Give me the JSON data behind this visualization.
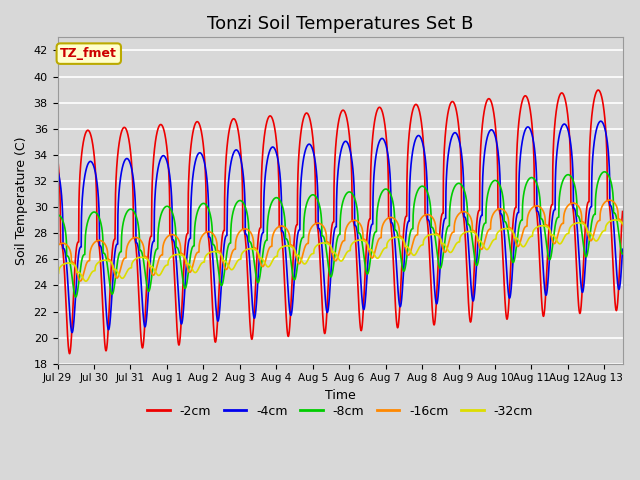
{
  "title": "Tonzi Soil Temperatures Set B",
  "xlabel": "Time",
  "ylabel": "Soil Temperature (C)",
  "ylim": [
    18,
    43
  ],
  "yticks": [
    18,
    20,
    22,
    24,
    26,
    28,
    30,
    32,
    34,
    36,
    38,
    40,
    42
  ],
  "bg_color": "#d8d8d8",
  "plot_bg_color": "#d8d8d8",
  "grid_color": "white",
  "legend_label": "TZ_fmet",
  "legend_box_color": "#ffffcc",
  "legend_box_edge": "#bbaa00",
  "legend_text_color": "#cc0000",
  "series": [
    {
      "label": "-2cm",
      "color": "#ee0000",
      "lw": 1.2
    },
    {
      "label": "-4cm",
      "color": "#0000ee",
      "lw": 1.2
    },
    {
      "label": "-8cm",
      "color": "#00cc00",
      "lw": 1.2
    },
    {
      "label": "-16cm",
      "color": "#ff8800",
      "lw": 1.2
    },
    {
      "label": "-32cm",
      "color": "#dddd00",
      "lw": 1.2
    }
  ],
  "num_days": 15.5,
  "samples_per_day": 288,
  "xtick_days": [
    0,
    1,
    2,
    3,
    4,
    5,
    6,
    7,
    8,
    9,
    10,
    11,
    12,
    13,
    14,
    15
  ],
  "xtick_labels": [
    "Jul 29",
    "Jul 30",
    "Jul 31",
    "Aug 1",
    "Aug 2",
    "Aug 3",
    "Aug 4",
    "Aug 5",
    "Aug 6",
    "Aug 7",
    "Aug 8",
    "Aug 9",
    "Aug 10",
    "Aug 11",
    "Aug 12",
    "Aug 13"
  ],
  "trend_per_day": 0.22,
  "phase_offsets": [
    0.0,
    0.07,
    0.17,
    0.3,
    0.45
  ],
  "amps": [
    8.5,
    6.5,
    3.2,
    1.5,
    0.75
  ],
  "means": [
    27.2,
    26.8,
    26.2,
    25.7,
    24.9
  ],
  "peak_sharpness": 3.0
}
